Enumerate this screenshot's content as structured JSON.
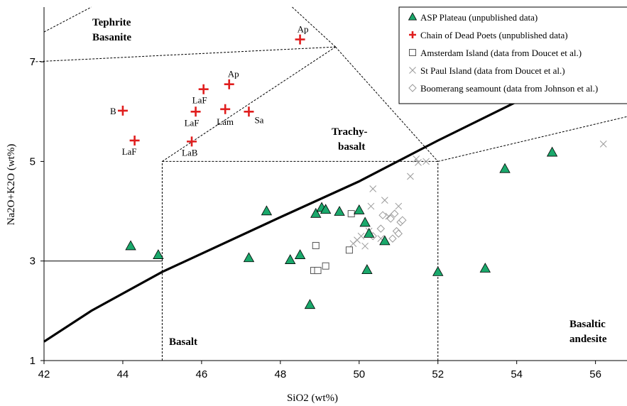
{
  "chart_data": {
    "type": "scatter",
    "xlabel": "SiO2 (wt%)",
    "ylabel": "Na2O+K2O (wt%)",
    "xlim": [
      42,
      56.8
    ],
    "ylim": [
      1,
      8.1
    ],
    "x_ticks": [
      42,
      44,
      46,
      48,
      50,
      52,
      54,
      56
    ],
    "y_ticks": [
      1,
      3,
      5,
      7
    ],
    "grid": false,
    "legend_position": "top-right",
    "field_labels": {
      "tephrite_1": "Tephrite",
      "tephrite_2": "Basanite",
      "trachy_1": "Trachy-",
      "trachy_2": "basalt",
      "basalt": "Basalt",
      "basaltic_1": "Basaltic",
      "basaltic_2": "andesite"
    },
    "series": [
      {
        "name": "ASP Plateau (unpublished data)",
        "marker": "triangle",
        "color": "#1aa86b",
        "points": [
          [
            44.2,
            3.3
          ],
          [
            44.9,
            3.12
          ],
          [
            47.2,
            3.06
          ],
          [
            47.65,
            4.0
          ],
          [
            48.25,
            3.02
          ],
          [
            48.5,
            3.12
          ],
          [
            48.75,
            2.12
          ],
          [
            48.9,
            3.95
          ],
          [
            49.05,
            4.07
          ],
          [
            49.15,
            4.03
          ],
          [
            49.5,
            3.99
          ],
          [
            50.0,
            4.02
          ],
          [
            50.15,
            3.77
          ],
          [
            50.25,
            3.55
          ],
          [
            50.2,
            2.82
          ],
          [
            50.65,
            3.4
          ],
          [
            52.0,
            2.78
          ],
          [
            53.2,
            2.85
          ],
          [
            53.7,
            4.85
          ],
          [
            54.9,
            5.18
          ]
        ]
      },
      {
        "name": "Chain of Dead Poets (unpublished data)",
        "marker": "plus",
        "color": "#e01e1e",
        "points": [
          [
            44.0,
            6.02
          ],
          [
            44.3,
            5.42
          ],
          [
            45.75,
            5.4
          ],
          [
            45.85,
            6.0
          ],
          [
            46.05,
            6.45
          ],
          [
            46.6,
            6.05
          ],
          [
            46.7,
            6.55
          ],
          [
            47.2,
            6.0
          ],
          [
            48.5,
            7.45
          ]
        ],
        "point_labels": [
          "B",
          "LaF",
          "LaB",
          "LaF",
          "LaF",
          "Lam",
          "Ap",
          "Sa",
          "Ap"
        ]
      },
      {
        "name": "Amsterdam Island (data from Doucet et al.)",
        "marker": "square",
        "color": "#555555",
        "points": [
          [
            48.85,
            2.81
          ],
          [
            48.9,
            3.31
          ],
          [
            48.95,
            2.81
          ],
          [
            49.15,
            2.9
          ],
          [
            49.75,
            3.22
          ],
          [
            49.8,
            3.95
          ]
        ]
      },
      {
        "name": "St Paul Island (data from Doucet et al.)",
        "marker": "x",
        "color": "#9a9a9a",
        "points": [
          [
            49.85,
            3.35
          ],
          [
            49.95,
            3.42
          ],
          [
            50.05,
            3.5
          ],
          [
            50.15,
            3.3
          ],
          [
            50.25,
            3.6
          ],
          [
            50.3,
            4.1
          ],
          [
            50.35,
            4.45
          ],
          [
            50.55,
            3.45
          ],
          [
            50.65,
            4.22
          ],
          [
            50.75,
            3.9
          ],
          [
            51.0,
            4.1
          ],
          [
            51.3,
            4.7
          ],
          [
            51.45,
            5.05
          ],
          [
            51.5,
            4.98
          ],
          [
            51.7,
            5.0
          ],
          [
            56.2,
            5.35
          ]
        ]
      },
      {
        "name": "Boomerang seamount (data from Johnson et al.)",
        "marker": "diamond",
        "color": "#9a9a9a",
        "points": [
          [
            50.35,
            3.5
          ],
          [
            50.55,
            3.65
          ],
          [
            50.6,
            3.92
          ],
          [
            50.8,
            3.85
          ],
          [
            50.9,
            3.95
          ],
          [
            50.95,
            3.6
          ],
          [
            51.0,
            3.55
          ],
          [
            51.05,
            3.78
          ],
          [
            50.85,
            3.45
          ],
          [
            51.1,
            3.82
          ]
        ]
      }
    ]
  }
}
